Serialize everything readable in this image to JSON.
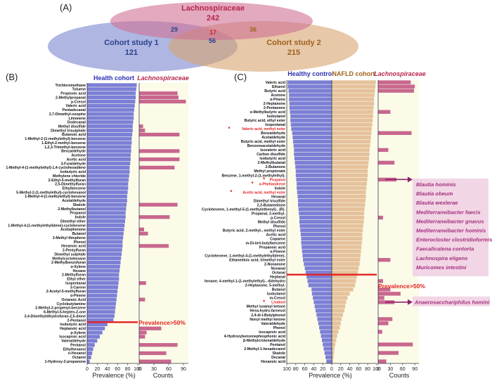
{
  "panel_labels": {
    "a": "(A)",
    "b": "(B)",
    "c": "(C)"
  },
  "colors": {
    "lach_fill": "#cf6f95",
    "lach_text": "#b8264d",
    "cohort1_fill": "#7a86cf",
    "cohort1_text": "#2b3f8c",
    "cohort2_fill": "#d7a46e",
    "cohort2_text": "#a0621d",
    "health_bar": "#7b7fd6",
    "nafld_bar": "#e5c29b",
    "count_bar": "#c8678e",
    "bg_fill": "#fbfbe8",
    "threshold": "#e52020",
    "species_bg": "#f2d6e6",
    "species_text": "#a3307d"
  },
  "venn": {
    "lach_label": "Lachnospiraceae",
    "lach_total": "242",
    "c1_label": "Cohort study 1",
    "c1_total": "121",
    "c2_label": "Cohort study 2",
    "c2_total": "215",
    "lach_c1": "29",
    "lach_c2": "36",
    "all3": "17",
    "c1_c2": "56"
  },
  "chart_data": [
    {
      "type": "bar",
      "panel": "B",
      "title_left": "Health cohort",
      "title_right": "Lachnospiraceae",
      "xlabel_left": "Prevalence (%)",
      "xlabel_right": "Counts",
      "xticks_left": [
        "0",
        "20",
        "40",
        "60",
        "80",
        "100"
      ],
      "xticks_right": [
        "0",
        "30",
        "60",
        "90"
      ],
      "threshold_label": "Prevalence>50%",
      "threshold_after_index": 57,
      "categories": [
        "Trichloromethane",
        "Toluene",
        "Propionic acid",
        "2-Methylpropanal",
        "p-Cresol",
        "Valeric acid",
        "Pentadecanal",
        "2,7-Dimethyl-oxepine",
        "Limonene",
        "Dodecanal",
        "Methyl disulfide",
        "Dimethyl trisulphide",
        "Butanoic acid",
        "1-Methyl-2-(1-methylethyl)-benzene",
        "1-Ethyl-2-methyl-benzene",
        "1,2,3-Trimethyl-benzene",
        "Benzaldehyde",
        "Acetone",
        "Acetic acid",
        "3-Furaldehyde",
        "1-Methyl-4-(1-methylethyl)-1,4-cyclohexadiene",
        "Isobutyric acid",
        "Methylene chloride",
        "2-Ethyl-5-methylfuran",
        "2,5-Dimethylfuran",
        "Ethylbenzene",
        "5-Methyl-2-(1-methylethyl)-cyclohexanol",
        "1-Methyl-4-(1-methylethyl)-benzene",
        "Acetaldehyde",
        "Skatole",
        "2-Methylbutanol",
        "Propanol",
        "Indole",
        "Dimethyl ether",
        "1-Methyl-4-(1-methylethylidene)-cyclohexene",
        "Acetophenone",
        "Butanol",
        "3-Methyl thiophene",
        "Phenol",
        "Hexanoic acid",
        "2-Pentylfuran",
        "Dimethyl sulphide",
        "Methylcyclohexane",
        "2-Methylbenzofuran",
        "α-Xylene",
        "Hexane",
        "2-Methylfuran",
        "Ethyl ether",
        "Isopentanal",
        "3-Carene",
        "2-Acetyl-5-methylfuran",
        "α-Pinene",
        "Octanoic Acid",
        "Cyclobutylamine",
        "2-Methyl-2-propenyl-benzene",
        "6-Methyl-5-hepten-2-one",
        "3,4-Dimethyldihydrofuran-2,5-dione",
        "2-Pentanol",
        "Isobutyric acid",
        "Heptanoic acid",
        "p-Xylene",
        "Isocaproic acid",
        "Valeraldehyde",
        "Pentanol",
        "Ethylhexanol",
        "n-Hexanol",
        "Octanol",
        "1-Hydroxy-2-propanone"
      ],
      "prevalence": [
        98,
        97,
        96,
        96,
        95,
        94,
        93,
        92,
        92,
        91,
        90,
        90,
        89,
        88,
        88,
        87,
        87,
        86,
        86,
        85,
        84,
        84,
        83,
        82,
        81,
        81,
        80,
        79,
        79,
        78,
        77,
        76,
        76,
        75,
        74,
        73,
        72,
        71,
        70,
        70,
        69,
        68,
        67,
        66,
        65,
        64,
        63,
        63,
        62,
        61,
        60,
        59,
        58,
        57,
        56,
        55,
        54,
        52,
        40,
        35,
        30,
        25,
        20,
        15,
        12,
        10,
        8,
        5
      ],
      "counts": [
        0,
        0,
        78,
        80,
        95,
        0,
        0,
        0,
        0,
        0,
        8,
        12,
        82,
        0,
        0,
        0,
        82,
        0,
        82,
        0,
        72,
        0,
        0,
        0,
        0,
        0,
        0,
        0,
        0,
        78,
        0,
        0,
        62,
        0,
        0,
        10,
        18,
        0,
        0,
        60,
        0,
        0,
        0,
        0,
        0,
        0,
        0,
        0,
        14,
        0,
        0,
        0,
        12,
        0,
        0,
        0,
        0,
        0,
        0,
        45,
        15,
        12,
        0,
        78,
        0,
        55,
        0,
        65
      ]
    },
    {
      "type": "bar",
      "panel": "C",
      "title_left": "Healthy control",
      "title_mid": "NAFLD cohort",
      "title_right": "Lachnospiraceae",
      "xlabel_left": "Prevalence (%)",
      "xlabel_right": "Counts",
      "xticks_left": [
        "100",
        "80",
        "60",
        "40",
        "20",
        "0",
        "20",
        "40",
        "60",
        "80",
        "100"
      ],
      "xticks_right": [
        "0",
        "30",
        "60",
        "90"
      ],
      "threshold_label": "Prevalence>50%",
      "threshold_after_index": 45,
      "categories": [
        "Valeric acid",
        "Ethanol",
        "Butyric acid",
        "Acetone",
        "α-Pinene",
        "2-Heptanone",
        "2-Pentanone",
        "α-Methylbutyric acid",
        "Isobutanol",
        "Butyric acid, ethyl ester",
        "Isopentanal",
        "Valeric acid, methyl ester",
        "Benzaldehyde",
        "Acetaldehyde",
        "Butyric acid, methyl ester",
        "Benzeneacetaldehyde",
        "Isovaleric acid",
        "Carbon disulfide",
        "Isobutyric acid",
        "2-Methylbutanal",
        "2-Butanone",
        "Methyl propionate",
        "Benzene, 1-methyl-2-(1-methylethyl)-",
        "Propanol",
        "α-Phellandrene",
        "Indole",
        "Acetic acid, methyl ester",
        "Hexanal",
        "Dimethyl trisulfide",
        "2,3-Butanedione",
        "Cyclohexene, 1-methyl-5-(1-methylethenyl)-, (R)-",
        "Propanal, 2-methyl-",
        "p-Cresol",
        "Methyl disulfide",
        "Phenol",
        "Butyric acid, 2-methyl-, methyl ester",
        "Acetic acid",
        "Copaene",
        "m-Di-tert-butylbenzene",
        "Propanoic acid",
        "α-Pinene",
        "Cyclohexene, 1-methyl-4-(1-methylethylidene)-",
        "Ethanedioic acid, trimethyl ester",
        "2-Nonanone",
        "Nonanal",
        "Octanal",
        "Heptanal",
        "hexane, 4-methyl-1-(1-methylethyl)-, didehydro",
        "2-Heptanone, 5-methyl-",
        "Butanol",
        "Isobutanol",
        "m-Cresol",
        "Linalool",
        "Methyl isoamyl ketone",
        "Hexa-hydro-farnesol",
        "2,4-di-t-Butylphenol",
        "Nonyl methyl ketone",
        "Valeraldehyde",
        "Phenol",
        "Isocaproic acid",
        "4-Hydroxybenzenephosphonic acid",
        "β-Methylcrotonaldehyde",
        "Pentanol",
        "2-Methyl-1-hexadecanol",
        "Skatole",
        "Decanal",
        "Hexanoic acid"
      ],
      "marked": [
        11,
        23,
        24,
        26,
        52
      ],
      "healthy_prevalence": [
        98,
        98,
        96,
        95,
        95,
        94,
        94,
        93,
        92,
        92,
        91,
        90,
        88,
        87,
        86,
        85,
        84,
        84,
        83,
        82,
        81,
        80,
        80,
        79,
        78,
        78,
        77,
        76,
        75,
        75,
        74,
        73,
        72,
        72,
        71,
        70,
        69,
        68,
        68,
        67,
        66,
        65,
        64,
        62,
        60,
        58,
        56,
        54,
        52,
        45,
        44,
        42,
        40,
        38,
        36,
        34,
        32,
        30,
        28,
        26,
        24,
        22,
        20,
        18,
        16,
        14,
        12
      ],
      "nafld_prevalence": [
        98,
        97,
        96,
        95,
        94,
        94,
        93,
        92,
        92,
        91,
        90,
        89,
        88,
        87,
        86,
        85,
        84,
        84,
        83,
        82,
        81,
        80,
        80,
        79,
        78,
        77,
        76,
        76,
        75,
        74,
        73,
        72,
        72,
        71,
        70,
        69,
        68,
        68,
        67,
        66,
        65,
        64,
        63,
        62,
        60,
        58,
        56,
        54,
        52,
        48,
        40,
        35,
        32,
        30,
        28,
        25,
        22,
        20,
        18,
        15,
        12,
        10,
        8,
        6,
        5,
        4,
        3
      ],
      "counts": [
        80,
        90,
        88,
        0,
        0,
        0,
        0,
        30,
        0,
        0,
        0,
        0,
        82,
        0,
        0,
        0,
        25,
        0,
        0,
        40,
        0,
        0,
        0,
        45,
        0,
        0,
        0,
        0,
        0,
        0,
        0,
        0,
        12,
        0,
        0,
        0,
        0,
        0,
        0,
        0,
        0,
        0,
        30,
        0,
        0,
        0,
        0,
        12,
        0,
        30,
        55,
        15,
        40,
        0,
        0,
        0,
        35,
        25,
        0,
        10,
        0,
        0,
        85,
        0,
        50,
        0,
        20
      ]
    }
  ],
  "species": {
    "upper": [
      "Blautia hominis",
      "Blautia obeum",
      "Blautia wexlerae",
      "Mediterraneibacter faecis",
      "Mediterraneibacter gnavus",
      "Mediterraneibacter hominis",
      "Enterocloster clostridioformis",
      "Faecalicatena contorta",
      "Lachnospira eligens",
      "Muricomes intestini"
    ],
    "lower": [
      "Anaerosacchariphilus homini"
    ]
  }
}
